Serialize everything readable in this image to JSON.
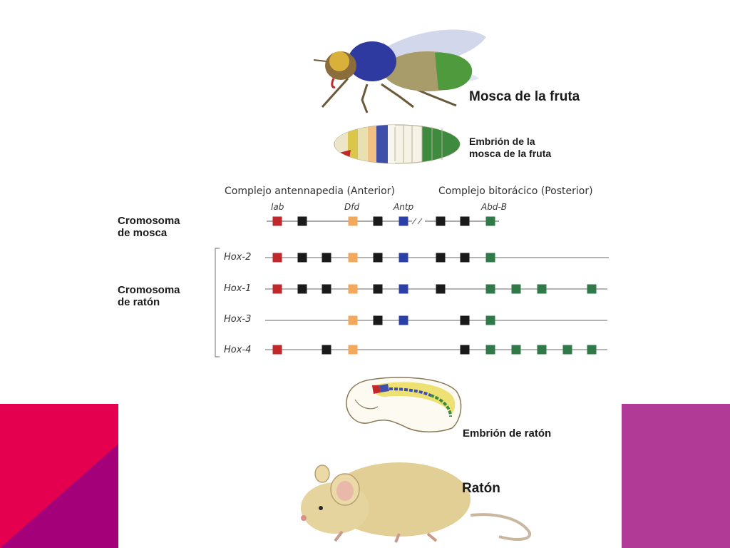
{
  "labels": {
    "fly": "Mosca de la fruta",
    "fly_embryo_line1": "Embrión de la",
    "fly_embryo_line2": "mosca de la fruta",
    "complex_antennapedia": "Complejo antennapedia (Anterior)",
    "complex_bithorax": "Complejo bitorácico (Posterior)",
    "fly_chrom_line1": "Cromosoma",
    "fly_chrom_line2": "de mosca",
    "mouse_chrom_line1": "Cromosoma",
    "mouse_chrom_line2": "de ratón",
    "mouse_embryo": "Embrión de ratón",
    "mouse": "Ratón"
  },
  "gene_labels": [
    "lab",
    "Dfd",
    "Antp",
    "Abd-B"
  ],
  "colors": {
    "red": "#c0282b",
    "black": "#1a1a1a",
    "orange": "#f2a95c",
    "blue": "#2c3fa6",
    "green": "#2f7a48",
    "pink": "#e5004f",
    "magenta": "#a4007a",
    "violet": "#b13a96"
  },
  "fly_chromosome": {
    "genes": [
      "red",
      "black",
      "orange",
      "black",
      "blue",
      "black",
      "black",
      "green"
    ]
  },
  "mouse_chromosomes": [
    {
      "name": "Hox-2",
      "genes": [
        "red",
        "black",
        "black",
        "orange",
        "black",
        "blue",
        "black",
        "black",
        "green"
      ]
    },
    {
      "name": "Hox-1",
      "genes": [
        "red",
        "black",
        "black",
        "orange",
        "black",
        "blue",
        "black",
        "green",
        "green",
        "green",
        "green"
      ]
    },
    {
      "name": "Hox-3",
      "genes": [
        "orange",
        "black",
        "blue",
        "black",
        "green"
      ]
    },
    {
      "name": "Hox-4",
      "genes": [
        "red",
        "black",
        "orange",
        "black",
        "green",
        "green",
        "green",
        "green",
        "green"
      ]
    }
  ]
}
